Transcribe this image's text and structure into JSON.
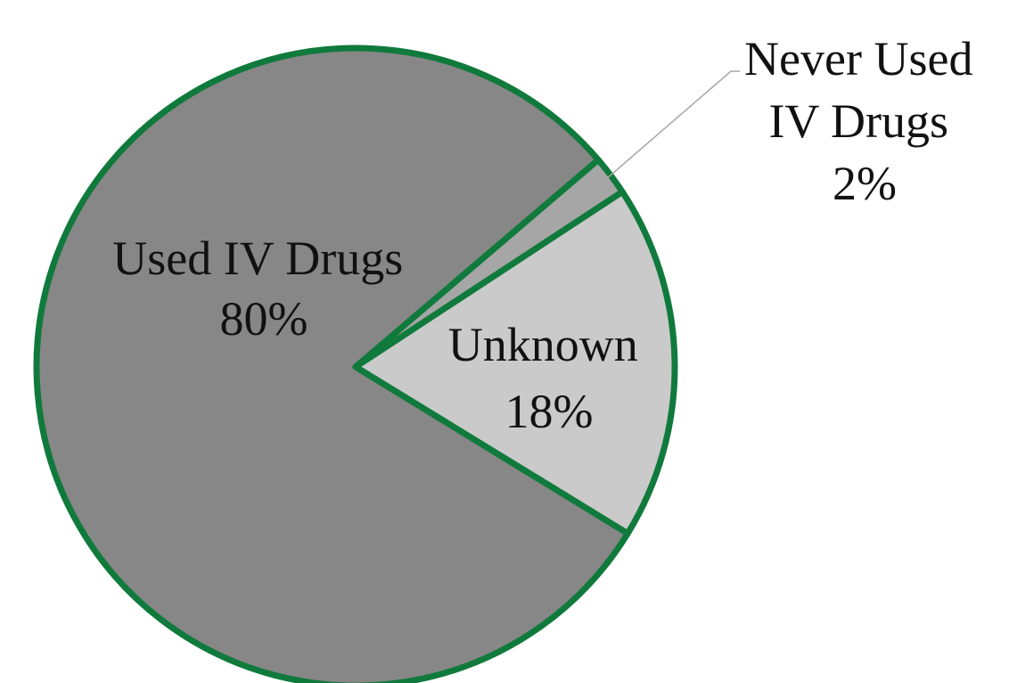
{
  "chart_data": {
    "type": "pie",
    "title": "",
    "slices": [
      {
        "name": "Used IV Drugs",
        "value": 80,
        "value_label": "80%",
        "color": "#878787"
      },
      {
        "name": "Never Used IV Drugs",
        "name_lines": [
          "Never Used",
          "IV Drugs"
        ],
        "value": 2,
        "value_label": "2%",
        "color": "#a6a6a6"
      },
      {
        "name": "Unknown",
        "value": 18,
        "value_label": "18%",
        "color": "#cacaca"
      }
    ],
    "border_color": "#107a3c",
    "leader_line_color": "#a6a6a6"
  }
}
